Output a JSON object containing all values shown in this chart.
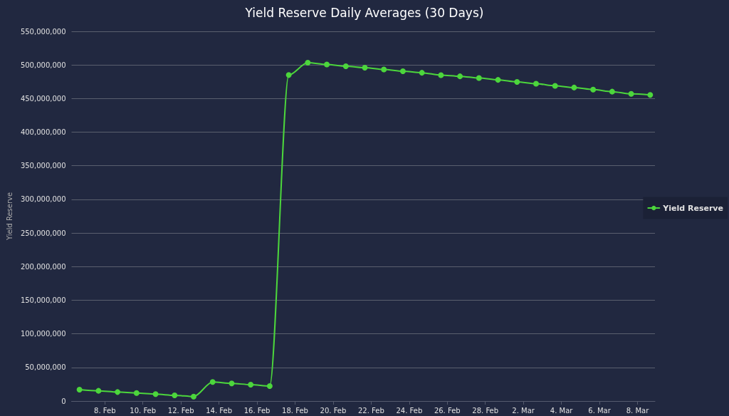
{
  "chart_data": {
    "type": "line",
    "title": "Yield Reserve Daily Averages (30 Days)",
    "ylabel": "Yield Reserve",
    "x": [
      "--02-06T16:00",
      "--02-07T16:00",
      "--02-08T16:00",
      "--02-09T16:00",
      "--02-10T16:00",
      "--02-11T16:00",
      "--02-12T16:00",
      "--02-13T16:00",
      "--02-14T16:00",
      "--02-15T16:00",
      "--02-16T16:00",
      "--02-17T16:00",
      "--02-18T16:00",
      "--02-19T16:00",
      "--02-20T16:00",
      "--02-21T16:00",
      "--02-22T16:00",
      "--02-23T16:00",
      "--02-24T16:00",
      "--02-25T16:00",
      "--02-26T16:00",
      "--02-27T16:00",
      "--02-28T16:00",
      "--03-01T16:00",
      "--03-02T16:00",
      "--03-03T16:00",
      "--03-04T16:00",
      "--03-05T16:00",
      "--03-06T16:00",
      "--03-07T16:00",
      "--03-08T16:00"
    ],
    "series": [
      {
        "name": "Yield Reserve",
        "color": "#4cd63c",
        "values": [
          17000000,
          15200000,
          13400000,
          12000000,
          10300000,
          8500000,
          6700000,
          28300000,
          26200000,
          24400000,
          22300000,
          485000000,
          503400000,
          500800000,
          498100000,
          495900000,
          493300000,
          490600000,
          488400000,
          484900000,
          483100000,
          480500000,
          477800000,
          474800000,
          472100000,
          469000000,
          466400000,
          463400000,
          460300000,
          457000000,
          455500000
        ]
      }
    ],
    "xlim": [
      "--02-06T06:00",
      "--03-08T22:00"
    ],
    "xticks": [
      {
        "value": "--02-08",
        "label": "8. Feb"
      },
      {
        "value": "--02-10",
        "label": "10. Feb"
      },
      {
        "value": "--02-12",
        "label": "12. Feb"
      },
      {
        "value": "--02-14",
        "label": "14. Feb"
      },
      {
        "value": "--02-16",
        "label": "16. Feb"
      },
      {
        "value": "--02-18",
        "label": "18. Feb"
      },
      {
        "value": "--02-20",
        "label": "20. Feb"
      },
      {
        "value": "--02-22",
        "label": "22. Feb"
      },
      {
        "value": "--02-24",
        "label": "24. Feb"
      },
      {
        "value": "--02-26",
        "label": "26. Feb"
      },
      {
        "value": "--02-28",
        "label": "28. Feb"
      },
      {
        "value": "--03-02",
        "label": "2. Mar"
      },
      {
        "value": "--03-04",
        "label": "4. Mar"
      },
      {
        "value": "--03-06",
        "label": "6. Mar"
      },
      {
        "value": "--03-08",
        "label": "8. Mar"
      }
    ],
    "ylim": [
      0,
      550000000
    ],
    "yticks": [
      {
        "value": 0,
        "label": "0"
      },
      {
        "value": 50000000,
        "label": "50,000,000"
      },
      {
        "value": 100000000,
        "label": "100,000,000"
      },
      {
        "value": 150000000,
        "label": "150,000,000"
      },
      {
        "value": 200000000,
        "label": "200,000,000"
      },
      {
        "value": 250000000,
        "label": "250,000,000"
      },
      {
        "value": 300000000,
        "label": "300,000,000"
      },
      {
        "value": 350000000,
        "label": "350,000,000"
      },
      {
        "value": 400000000,
        "label": "400,000,000"
      },
      {
        "value": 450000000,
        "label": "450,000,000"
      },
      {
        "value": 500000000,
        "label": "500,000,000"
      },
      {
        "value": 550000000,
        "label": "550,000,000"
      }
    ],
    "grid": "y",
    "legend": "right",
    "marker": "circle",
    "line_style": "solid"
  }
}
